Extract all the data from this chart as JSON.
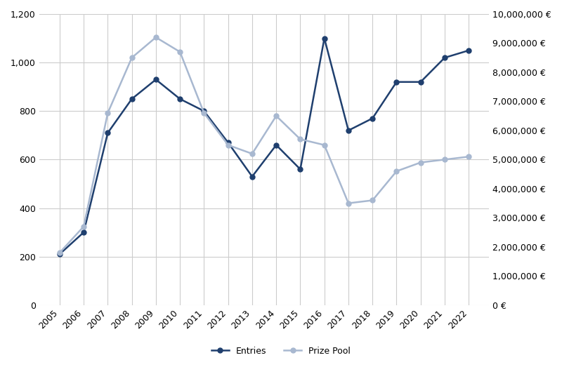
{
  "years": [
    2005,
    2006,
    2007,
    2008,
    2009,
    2010,
    2011,
    2012,
    2013,
    2014,
    2015,
    2016,
    2017,
    2018,
    2019,
    2020,
    2021,
    2022
  ],
  "entries": [
    210,
    300,
    710,
    850,
    930,
    850,
    800,
    670,
    530,
    660,
    560,
    1100,
    720,
    770,
    920,
    920,
    1020,
    1050
  ],
  "prize_pool": [
    1800000,
    2700000,
    6600000,
    8500000,
    9200000,
    8700000,
    6600000,
    5500000,
    5200000,
    6500000,
    5700000,
    5500000,
    3500000,
    3600000,
    4600000,
    4900000,
    5000000,
    5100000
  ],
  "entries_color": "#1F3F6E",
  "prize_pool_color": "#A8B8D0",
  "left_ylim": [
    0,
    1200
  ],
  "left_yticks": [
    0,
    200,
    400,
    600,
    800,
    1000,
    1200
  ],
  "right_ylim": [
    0,
    10000000
  ],
  "right_yticks": [
    0,
    1000000,
    2000000,
    3000000,
    4000000,
    5000000,
    6000000,
    7000000,
    8000000,
    9000000,
    10000000
  ],
  "bg_color": "#FFFFFF",
  "grid_color": "#CCCCCC",
  "legend_entries": "Entries",
  "legend_prize": "Prize Pool",
  "marker_size": 5,
  "linewidth": 1.8
}
